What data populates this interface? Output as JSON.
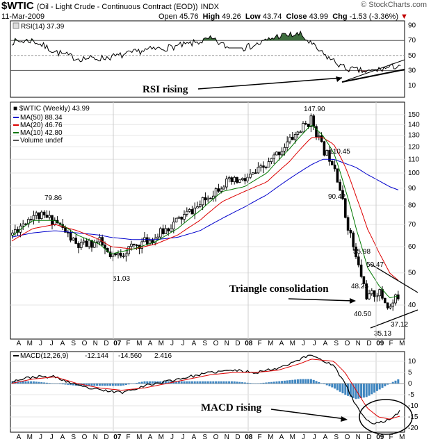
{
  "header": {
    "symbol": "$WTIC",
    "description": "(Oil - Light Crude - Continuous Contract (EOD))",
    "exchange": "INDX",
    "date": "11-Mar-2009",
    "open_label": "Open",
    "open": "45.76",
    "high_label": "High",
    "high": "49.26",
    "low_label": "Low",
    "low": "43.74",
    "close_label": "Close",
    "close": "43.99",
    "chg_label": "Chg",
    "chg": "-1.53 (-3.36%)",
    "brand": "© StockCharts.com"
  },
  "colors": {
    "ma50": "#0000cc",
    "ma20": "#dd0000",
    "ma10": "#007700",
    "rsi_fill": "#3f6e3f",
    "rsi_low_fill": "#8a4a4a",
    "macd_hist": "#3f86c0"
  },
  "chart_data": [
    {
      "type": "line",
      "panel": "RSI",
      "title": "RSI(14) 37.39",
      "ylim": [
        0,
        100
      ],
      "yticks": [
        10,
        30,
        50,
        70,
        90
      ],
      "reference_lines": [
        30,
        50,
        70
      ],
      "x": [
        "2006-04",
        "2006-06",
        "2006-08",
        "2006-10",
        "2006-12",
        "2007-02",
        "2007-04",
        "2007-06",
        "2007-08",
        "2007-10",
        "2007-12",
        "2008-02",
        "2008-04",
        "2008-06",
        "2008-08",
        "2008-10",
        "2008-12",
        "2009-02",
        "2009-03"
      ],
      "values": [
        68,
        70,
        55,
        46,
        46,
        50,
        57,
        60,
        65,
        72,
        57,
        64,
        76,
        78,
        52,
        33,
        28,
        34,
        37.39
      ]
    },
    {
      "type": "line",
      "panel": "price",
      "title": "$WTIC (Weekly) 43.99",
      "scale": "log",
      "ylim": [
        32,
        155
      ],
      "yticks": [
        40,
        50,
        60,
        70,
        80,
        90,
        100,
        110,
        120,
        130,
        140,
        150
      ],
      "legend": [
        "MA(50) 88.34",
        "MA(20) 46.76",
        "MA(10) 42.80",
        "Volume undef"
      ],
      "x": [
        "2006-04",
        "2006-06",
        "2006-08",
        "2006-10",
        "2006-12",
        "2007-01",
        "2007-03",
        "2007-05",
        "2007-07",
        "2007-09",
        "2007-11",
        "2008-01",
        "2008-03",
        "2008-05",
        "2008-07",
        "2008-08",
        "2008-09",
        "2008-10",
        "2008-11",
        "2008-12",
        "2009-01",
        "2009-02",
        "2009-03"
      ],
      "series": [
        {
          "name": "price",
          "values": [
            65,
            75,
            72,
            60,
            62,
            55,
            60,
            64,
            72,
            80,
            93,
            95,
            105,
            125,
            145,
            118,
            108,
            75,
            55,
            42,
            44,
            39,
            44
          ]
        },
        {
          "name": "MA(50)",
          "values": [
            64,
            66,
            67,
            66,
            65,
            64,
            63,
            63,
            64,
            67,
            73,
            79,
            86,
            96,
            106,
            110,
            110,
            107,
            104,
            99,
            95,
            91,
            88.34
          ]
        },
        {
          "name": "MA(20)",
          "values": [
            62,
            68,
            70,
            67,
            63,
            60,
            59,
            61,
            65,
            72,
            82,
            88,
            94,
            108,
            128,
            128,
            122,
            105,
            85,
            68,
            58,
            50,
            46.76
          ]
        },
        {
          "name": "MA(10)",
          "values": [
            64,
            72,
            72,
            65,
            61,
            57,
            59,
            62,
            68,
            77,
            88,
            91,
            100,
            118,
            140,
            130,
            115,
            90,
            68,
            52,
            46,
            42,
            42.8
          ]
        }
      ],
      "price_labels": [
        "79.86",
        "51.03",
        "147.90",
        "110.45",
        "90.42",
        "55.98",
        "50.47",
        "48.25",
        "40.50",
        "35.13",
        "37.12"
      ]
    },
    {
      "type": "line",
      "panel": "MACD",
      "title": "MACD(12,26,9)",
      "legend": [
        "-12.144",
        "-14.560",
        "2.416"
      ],
      "ylim": [
        -20,
        15
      ],
      "yticks": [
        10,
        5,
        0,
        -5,
        -10,
        -15,
        -20
      ],
      "x": [
        "2006-04",
        "2006-06",
        "2006-08",
        "2006-10",
        "2006-12",
        "2007-02",
        "2007-04",
        "2007-06",
        "2007-08",
        "2007-10",
        "2007-12",
        "2008-02",
        "2008-04",
        "2008-06",
        "2008-07",
        "2008-09",
        "2008-10",
        "2008-11",
        "2008-12",
        "2009-01",
        "2009-02",
        "2009-03"
      ],
      "series": [
        {
          "name": "MACD",
          "values": [
            1,
            3,
            3,
            -1,
            -3,
            -4,
            -1,
            1,
            3,
            5,
            6,
            5,
            7,
            11,
            13,
            8,
            0,
            -10,
            -17,
            -18,
            -16,
            -12.144
          ]
        },
        {
          "name": "Signal",
          "values": [
            0,
            2,
            3,
            0,
            -2,
            -3,
            -2,
            0,
            2,
            4,
            5,
            5,
            6,
            9,
            11,
            10,
            5,
            -3,
            -11,
            -15,
            -16,
            -14.56
          ]
        },
        {
          "name": "Histogram",
          "values": [
            1,
            1,
            0,
            -1,
            -1,
            -1,
            1,
            1,
            1,
            1,
            1,
            0,
            1,
            2,
            2,
            -2,
            -5,
            -7,
            -6,
            -3,
            0,
            2.416
          ]
        }
      ]
    }
  ],
  "x_axis": {
    "labels": [
      "A",
      "M",
      "J",
      "J",
      "A",
      "S",
      "O",
      "N",
      "D",
      "07",
      "F",
      "M",
      "A",
      "M",
      "J",
      "J",
      "A",
      "S",
      "O",
      "N",
      "D",
      "08",
      "F",
      "M",
      "A",
      "M",
      "J",
      "J",
      "A",
      "S",
      "O",
      "N",
      "D",
      "09",
      "F",
      "M"
    ]
  },
  "annotations": {
    "rsi": "RSI rising",
    "triangle": "Triangle consolidation",
    "macd": "MACD rising"
  }
}
